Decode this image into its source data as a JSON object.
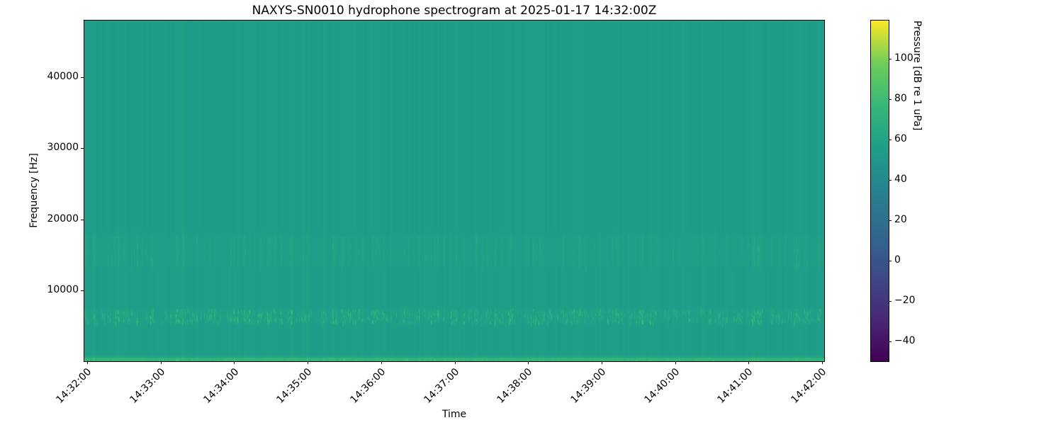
{
  "chart_data": {
    "type": "heatmap",
    "title": "NAXYS-SN0010 hydrophone spectrogram at 2025-01-17 14:32:00Z",
    "xlabel": "Time",
    "ylabel": "Frequency [Hz]",
    "x_tick_labels": [
      "14:32:00",
      "14:33:00",
      "14:34:00",
      "14:35:00",
      "14:36:00",
      "14:37:00",
      "14:38:00",
      "14:39:00",
      "14:40:00",
      "14:41:00",
      "14:42:00"
    ],
    "x_tick_positions": [
      0.0038,
      0.1032,
      0.2025,
      0.3018,
      0.4011,
      0.5005,
      0.5998,
      0.6991,
      0.7984,
      0.8978,
      0.9971
    ],
    "y_ticks": [
      {
        "value": 10000,
        "label": "10000"
      },
      {
        "value": 20000,
        "label": "20000"
      },
      {
        "value": 30000,
        "label": "30000"
      },
      {
        "value": 40000,
        "label": "40000"
      }
    ],
    "y_axis_range_hz": [
      0,
      48000
    ],
    "grid": false,
    "colorbar": {
      "label": "Pressure [dB re 1 uPa]",
      "ticks": [
        {
          "value": 100,
          "label": "100"
        },
        {
          "value": 80,
          "label": "80"
        },
        {
          "value": 60,
          "label": "60"
        },
        {
          "value": 40,
          "label": "40"
        },
        {
          "value": 20,
          "label": "20"
        },
        {
          "value": 0,
          "label": "0"
        },
        {
          "value": -20,
          "label": "−20"
        },
        {
          "value": -40,
          "label": "−40"
        }
      ],
      "vmin": -50,
      "vmax": 119,
      "colormap": "viridis",
      "colormap_stops": [
        "#440154",
        "#482878",
        "#3e4989",
        "#31688e",
        "#26828e",
        "#1f9e89",
        "#35b779",
        "#6ece58",
        "#fde725"
      ]
    },
    "background_level_db": 55,
    "bands": [
      {
        "name": "low-frequency-broadband",
        "freq_hz": [
          0,
          900
        ],
        "level_db": 76,
        "speckle_level_db": 96,
        "description": "bright green band hugging the bottom edge"
      },
      {
        "name": "tonal-band-6500Hz",
        "freq_hz": [
          5300,
          7400
        ],
        "level_db": 61,
        "speckle_level_db": 88,
        "description": "speckled bright dashes repeating in time"
      },
      {
        "name": "mid-band-15000Hz",
        "freq_hz": [
          13300,
          17700
        ],
        "level_db": 58,
        "speckle_level_db": 70,
        "description": "faint brighter dashes repeating in time"
      }
    ],
    "texture": {
      "vertical_stripe_db": 3,
      "description": "per-column (time) level striping over a uniform teal background, stronger at the left edge"
    }
  }
}
